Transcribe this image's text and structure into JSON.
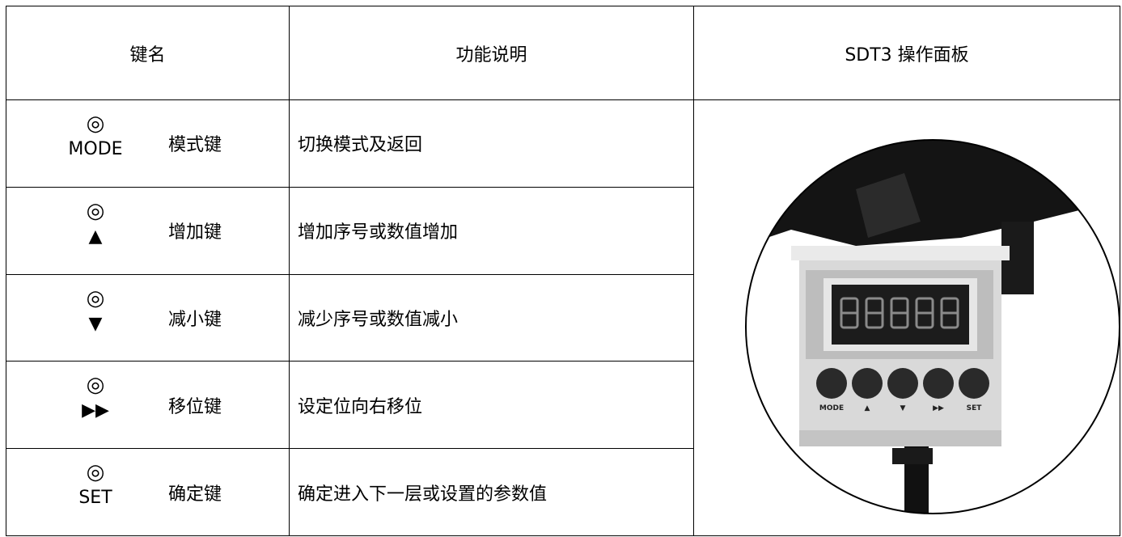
{
  "table": {
    "header": [
      "键名",
      "功能说明",
      "SDT3 操作面板"
    ],
    "rows": [
      {
        "symbol": "◎",
        "key": "MODE",
        "name": "模式键",
        "desc": "切换模式及返回"
      },
      {
        "symbol": "◎",
        "key": "▲",
        "name": "增加键",
        "desc": "增加序号或数值增加"
      },
      {
        "symbol": "◎",
        "key": "▼",
        "name": "减小键",
        "desc": "减少序号或数值减小"
      },
      {
        "symbol": "◎",
        "key": "▶▶",
        "name": "移位键",
        "desc": "设定位向右移位"
      },
      {
        "symbol": "◎",
        "key": "SET",
        "name": "确定键",
        "desc": "确定进入下一层或设置的参数值"
      }
    ],
    "panel_labels": [
      "MODE",
      "▲",
      "▼",
      "▶▶",
      "SET"
    ]
  }
}
